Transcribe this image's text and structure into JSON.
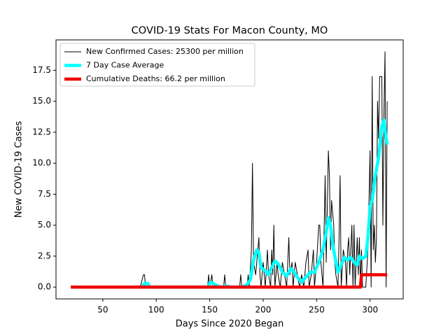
{
  "chart_data": {
    "type": "line",
    "title": "COVID-19 Stats For Macon County, MO",
    "xlabel": "Days Since 2020 Began",
    "ylabel": "New COVID-19 Cases",
    "xlim": [
      6.2,
      331
    ],
    "ylim": [
      -0.95,
      19.95
    ],
    "xticks": [
      50,
      100,
      150,
      200,
      250,
      300
    ],
    "yticks": [
      {
        "value": 0,
        "label": "0.0"
      },
      2.5,
      {
        "value": 5,
        "label": "5.0"
      },
      7.5,
      {
        "value": 10,
        "label": "10.0"
      },
      12.5,
      {
        "value": 15,
        "label": "15.0"
      },
      17.5
    ],
    "legend": "upper left",
    "series": [
      {
        "name": "New Confirmed Cases: 25300 per million",
        "color": "#000000",
        "width": 1,
        "x": [
          85,
          88,
          89,
          90,
          148,
          149,
          150,
          152,
          153,
          163,
          164,
          165,
          178,
          179,
          180,
          185,
          186,
          187,
          189,
          190,
          191,
          193,
          195,
          196,
          197,
          198,
          200,
          201,
          202,
          204,
          205,
          207,
          208,
          209,
          210,
          211,
          213,
          214,
          216,
          218,
          220,
          222,
          224,
          225,
          227,
          228,
          230,
          232,
          234,
          236,
          238,
          240,
          242,
          243,
          245,
          247,
          248,
          250,
          252,
          253,
          254,
          256,
          258,
          259,
          261,
          262,
          263,
          264,
          266,
          267,
          268,
          270,
          271,
          272,
          273,
          275,
          277,
          278,
          279,
          280,
          281,
          282,
          283,
          284,
          285,
          286,
          288,
          289,
          290,
          291,
          292,
          293,
          296,
          298,
          300,
          301,
          302,
          303,
          304,
          305,
          306,
          307,
          308,
          309,
          310,
          311,
          312,
          313,
          314,
          315,
          316
        ],
        "values": [
          0,
          1,
          1,
          0,
          0,
          1,
          0,
          1,
          0,
          0,
          1,
          0,
          0,
          1,
          0,
          0,
          1,
          0,
          3,
          10,
          2,
          1,
          3,
          4,
          1,
          0,
          2,
          1,
          0,
          3,
          1,
          0,
          3,
          1,
          5,
          0,
          2,
          1,
          0,
          2,
          1,
          0,
          4,
          1,
          2,
          0,
          2,
          1,
          0,
          1,
          0,
          2,
          3,
          0,
          1,
          3,
          0,
          2,
          5,
          5,
          2,
          0,
          9,
          2,
          11,
          9,
          3,
          7,
          5,
          2,
          1,
          0,
          4,
          9,
          0,
          3,
          2,
          0,
          3,
          4,
          1,
          3,
          5,
          0,
          5,
          0,
          4,
          1,
          4,
          0,
          3,
          0,
          0,
          3,
          11,
          0,
          17,
          3,
          5,
          2,
          4,
          15,
          12,
          17,
          17,
          17,
          5,
          14,
          19,
          0,
          15
        ]
      },
      {
        "name": "7 Day Case Average",
        "color": "#00ffff",
        "width": 4.5,
        "x": [
          87,
          89,
          92,
          94,
          148,
          151,
          155,
          160,
          165,
          170,
          180,
          185,
          188,
          191,
          194,
          196,
          198,
          202,
          205,
          208,
          211,
          214,
          218,
          222,
          226,
          229,
          232,
          236,
          240,
          244,
          248,
          252,
          256,
          259,
          261,
          263,
          265,
          267,
          270,
          273,
          276,
          279,
          282,
          285,
          288,
          290,
          293,
          296,
          298,
          300,
          302,
          305,
          308,
          311,
          313,
          315,
          316
        ],
        "values": [
          0,
          0.3,
          0.3,
          0,
          0,
          0.4,
          0.2,
          0,
          0.1,
          0,
          0,
          0.2,
          0.6,
          2.2,
          3,
          2.8,
          1.6,
          1.3,
          1,
          1.6,
          2.1,
          1.9,
          1.2,
          0.9,
          1.5,
          1.2,
          0.8,
          0.4,
          0.8,
          1.2,
          1.2,
          2,
          3,
          4.5,
          5.6,
          5,
          3.5,
          2.5,
          1.2,
          1.8,
          2.4,
          2.2,
          2.4,
          2,
          1.8,
          2.5,
          2.3,
          2.5,
          4,
          6.5,
          7,
          9,
          10.5,
          13,
          13.5,
          12,
          11.5
        ]
      },
      {
        "name": "Cumulative Deaths: 66.2 per million",
        "color": "#ee0000",
        "width": 4.5,
        "x": [
          20,
          291,
          292,
          316
        ],
        "values": [
          0,
          0,
          1,
          1
        ]
      }
    ]
  }
}
